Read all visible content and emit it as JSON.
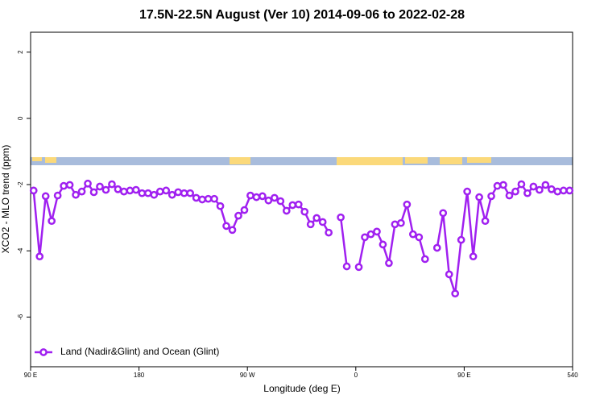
{
  "chart_data": {
    "type": "line",
    "title": "17.5N-22.5N August (Ver 10)   2014-09-06 to 2022-02-28",
    "x_label": "Longitude (deg E)",
    "y_label": "XCO2 - MLO trend (ppm)",
    "x": [
      92.5,
      97.5,
      102.5,
      107.5,
      112.5,
      117.5,
      122.5,
      127.5,
      132.5,
      137.5,
      142.5,
      147.5,
      152.5,
      157.5,
      162.5,
      167.5,
      172.5,
      177.5,
      182.5,
      187.5,
      192.5,
      197.5,
      202.5,
      207.5,
      212.5,
      217.5,
      222.5,
      227.5,
      232.5,
      237.5,
      242.5,
      247.5,
      252.5,
      257.5,
      262.5,
      267.5,
      272.5,
      277.5,
      282.5,
      287.5,
      292.5,
      297.5,
      302.5,
      307.5,
      312.5,
      317.5,
      322.5,
      327.5,
      332.5,
      337.5,
      342.5,
      347.5,
      352.5,
      357.5,
      362.5,
      367.5,
      372.5,
      377.5,
      382.5,
      387.5,
      392.5,
      397.5,
      402.5,
      407.5,
      412.5,
      417.5,
      422.5,
      427.5,
      432.5,
      437.5,
      442.5,
      447.5,
      452.5,
      457.5,
      462.5,
      467.5,
      472.5,
      477.5,
      482.5,
      487.5,
      492.5,
      497.5,
      502.5,
      507.5,
      512.5,
      517.5,
      522.5,
      527.5,
      532.5,
      537.5
    ],
    "series": [
      {
        "name": "Land (Nadir&Glint) and Ocean (Glint)",
        "color": "#a020f0",
        "values": [
          -2.18,
          -4.17,
          -2.35,
          -3.1,
          -2.33,
          -2.04,
          -2.01,
          -2.31,
          -2.21,
          -1.97,
          -2.23,
          -2.06,
          -2.16,
          -1.99,
          -2.14,
          -2.21,
          -2.18,
          -2.16,
          -2.26,
          -2.26,
          -2.31,
          -2.21,
          -2.18,
          -2.31,
          -2.23,
          -2.26,
          -2.26,
          -2.4,
          -2.45,
          -2.43,
          -2.43,
          -2.65,
          -3.25,
          -3.37,
          -2.94,
          -2.77,
          -2.33,
          -2.38,
          -2.35,
          -2.48,
          -2.4,
          -2.5,
          -2.79,
          -2.62,
          -2.6,
          -2.82,
          -3.2,
          -3.01,
          -3.13,
          -3.45,
          null,
          -2.99,
          -4.47,
          null,
          -4.49,
          -3.59,
          -3.5,
          -3.42,
          -3.81,
          -4.37,
          -3.2,
          -3.16,
          -2.6,
          -3.5,
          -3.59,
          -4.25,
          null,
          -3.91,
          -2.86,
          -4.71,
          -5.29,
          -3.67,
          -2.21,
          -4.17,
          -2.38,
          -3.1,
          -2.35,
          -2.04,
          -2.01,
          -2.33,
          -2.21,
          -1.99,
          -2.26,
          -2.06,
          -2.16,
          -2.01,
          -2.14,
          -2.21,
          -2.18,
          -2.18
        ]
      }
    ],
    "xlim": [
      90,
      540
    ],
    "xticks": [
      {
        "value": 90,
        "label": "90 E"
      },
      180,
      {
        "value": 270,
        "label": "90 W"
      },
      {
        "value": 360,
        "label": "0"
      },
      {
        "value": 450,
        "label": "90 E"
      },
      540
    ],
    "ylim": [
      -7.5,
      2.6
    ],
    "yticks": [
      -6,
      -4,
      -2,
      0,
      2
    ],
    "legend": "bottom-left"
  }
}
